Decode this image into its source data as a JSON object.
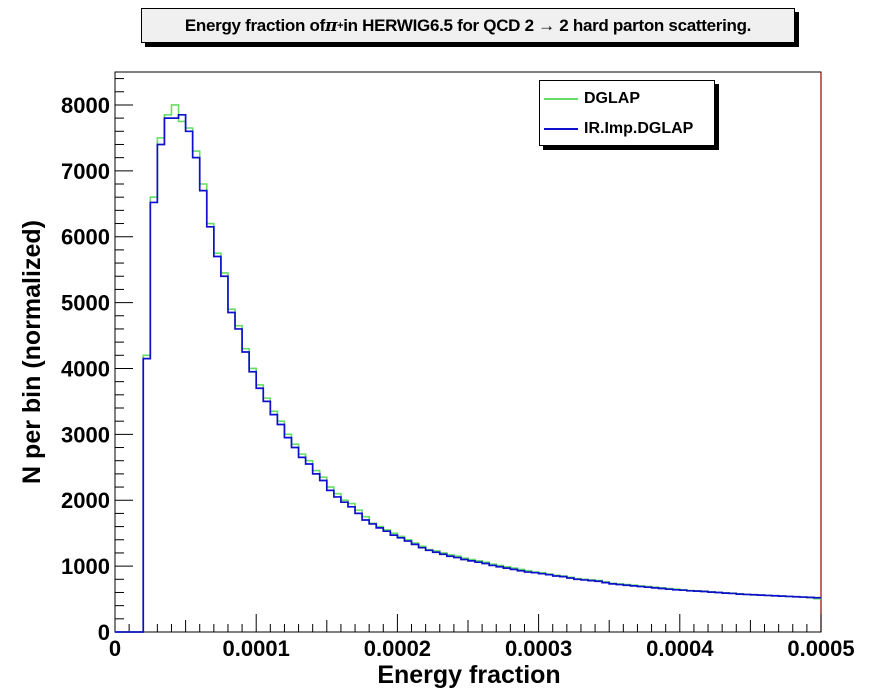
{
  "chart_data": {
    "type": "line",
    "title_main": "Energy fraction of ",
    "title_symbol": "π",
    "title_sup": "+",
    "title_rest": " in HERWIG6.5 for QCD 2 → 2 hard parton scattering.",
    "xlabel": "Energy fraction",
    "ylabel": "N per bin (normalized)",
    "xlim": [
      0,
      0.0005
    ],
    "ylim": [
      0,
      8500
    ],
    "x_ticks": [
      0,
      0.0001,
      0.0002,
      0.0003,
      0.0004,
      0.0005
    ],
    "x_tick_labels": [
      "0",
      "0.0001",
      "0.0002",
      "0.0003",
      "0.0004",
      "0.0005"
    ],
    "y_ticks": [
      0,
      1000,
      2000,
      3000,
      4000,
      5000,
      6000,
      7000,
      8000
    ],
    "y_tick_labels": [
      "0",
      "1000",
      "2000",
      "3000",
      "4000",
      "5000",
      "6000",
      "7000",
      "8000"
    ],
    "legend_position": "top-right",
    "grid": false,
    "bin_width": 5e-06,
    "series": [
      {
        "name": "DGLAP",
        "color": "#66dd66",
        "values": [
          0,
          0,
          0,
          0,
          4200,
          6600,
          7500,
          7850,
          8000,
          7750,
          7650,
          7300,
          6800,
          6200,
          5750,
          5450,
          4900,
          4650,
          4300,
          4000,
          3750,
          3550,
          3350,
          3200,
          3000,
          2850,
          2700,
          2600,
          2450,
          2350,
          2200,
          2100,
          2000,
          1950,
          1850,
          1750,
          1650,
          1600,
          1550,
          1500,
          1450,
          1400,
          1350,
          1300,
          1250,
          1230,
          1200,
          1170,
          1150,
          1120,
          1100,
          1080,
          1060,
          1030,
          1010,
          990,
          970,
          950,
          930,
          910,
          900,
          880,
          860,
          850,
          830,
          810,
          800,
          790,
          780,
          760,
          740,
          730,
          720,
          710,
          700,
          690,
          680,
          670,
          660,
          650,
          640,
          630,
          625,
          620,
          610,
          600,
          595,
          590,
          580,
          570,
          565,
          560,
          555,
          550,
          545,
          540,
          535,
          530,
          520,
          505
        ]
      },
      {
        "name": "IR.Imp.DGLAP",
        "color": "#1010cc",
        "values": [
          0,
          0,
          0,
          0,
          4150,
          6520,
          7400,
          7800,
          7800,
          7850,
          7600,
          7200,
          6700,
          6150,
          5700,
          5400,
          4850,
          4600,
          4250,
          3950,
          3700,
          3500,
          3300,
          3150,
          2950,
          2800,
          2650,
          2550,
          2400,
          2300,
          2150,
          2050,
          1970,
          1900,
          1800,
          1700,
          1640,
          1580,
          1530,
          1470,
          1430,
          1380,
          1330,
          1280,
          1240,
          1210,
          1180,
          1150,
          1130,
          1100,
          1080,
          1060,
          1040,
          1010,
          990,
          970,
          950,
          930,
          910,
          900,
          885,
          870,
          850,
          840,
          820,
          800,
          790,
          780,
          770,
          750,
          730,
          720,
          710,
          700,
          690,
          680,
          670,
          660,
          650,
          640,
          635,
          625,
          620,
          615,
          605,
          600,
          590,
          585,
          575,
          570,
          565,
          560,
          555,
          550,
          545,
          540,
          535,
          530,
          525,
          520
        ]
      }
    ]
  }
}
